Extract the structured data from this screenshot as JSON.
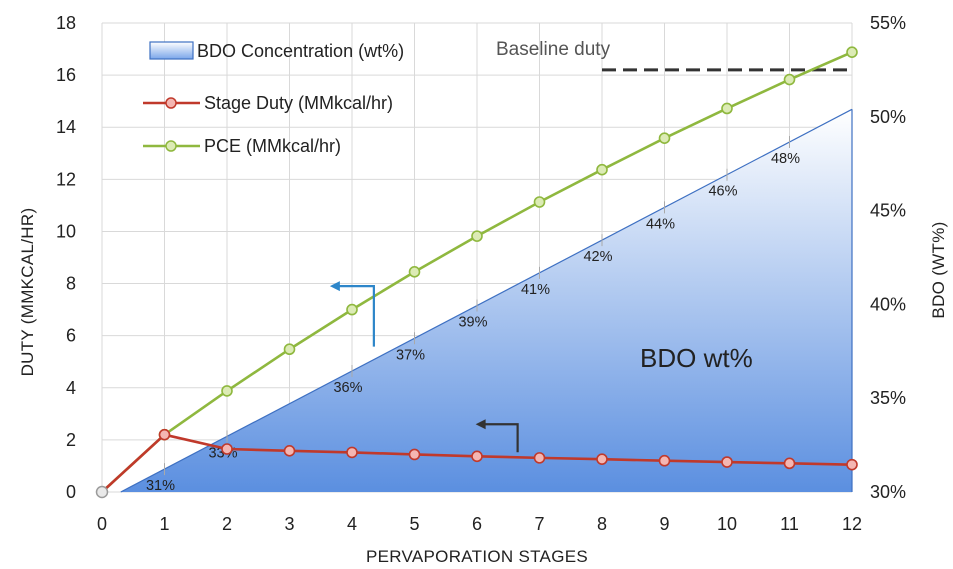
{
  "chart_data": {
    "type": "line",
    "x": [
      0,
      1,
      2,
      3,
      4,
      5,
      6,
      7,
      8,
      9,
      10,
      11,
      12
    ],
    "xlabel": "PERVAPORATION STAGES",
    "ylabel": "DUTY (MMKCAL/HR)",
    "y2label": "BDO (WT%)",
    "ylim": [
      0,
      18
    ],
    "yticks": [
      "0",
      "2",
      "4",
      "6",
      "8",
      "10",
      "12",
      "14",
      "16",
      "18"
    ],
    "y2lim": [
      30,
      55
    ],
    "y2ticks": [
      "30%",
      "35%",
      "40%",
      "45%",
      "50%",
      "55%"
    ],
    "xticks": [
      "0",
      "1",
      "2",
      "3",
      "4",
      "5",
      "6",
      "7",
      "8",
      "9",
      "10",
      "11",
      "12"
    ],
    "grid": true,
    "legend_position": "top-left",
    "series": [
      {
        "name": "BDO Concentration (wt%)",
        "type": "area",
        "axis": "right",
        "x": [
          0.3,
          12
        ],
        "values": [
          30.0,
          50.4
        ]
      },
      {
        "name": "Stage Duty (MMkcal/hr)",
        "type": "line",
        "axis": "left",
        "x": [
          0,
          1,
          2,
          3,
          4,
          5,
          6,
          7,
          8,
          9,
          10,
          11,
          12
        ],
        "values": [
          0,
          2.2,
          1.65,
          1.58,
          1.52,
          1.44,
          1.37,
          1.31,
          1.26,
          1.2,
          1.15,
          1.1,
          1.05
        ]
      },
      {
        "name": "PCE (MMkcal/hr)",
        "type": "line",
        "axis": "left",
        "x": [
          0,
          1,
          2,
          3,
          4,
          5,
          6,
          7,
          8,
          9,
          10,
          11,
          12
        ],
        "values": [
          0,
          2.2,
          3.88,
          5.48,
          7.0,
          8.45,
          9.82,
          11.13,
          12.37,
          13.58,
          14.72,
          15.83,
          16.88
        ]
      }
    ],
    "data_labels": [
      {
        "x": 1,
        "text": "31%"
      },
      {
        "x": 2,
        "text": "33%"
      },
      {
        "x": 4,
        "text": "36%"
      },
      {
        "x": 5,
        "text": "37%"
      },
      {
        "x": 6,
        "text": "39%"
      },
      {
        "x": 7,
        "text": "41%"
      },
      {
        "x": 8,
        "text": "42%"
      },
      {
        "x": 9,
        "text": "44%"
      },
      {
        "x": 10,
        "text": "46%"
      },
      {
        "x": 11,
        "text": "48%"
      }
    ],
    "baseline": {
      "label": "Baseline duty",
      "value": 16.2,
      "x_start": 8,
      "x_end": 12
    },
    "annotation": "BDO wt%",
    "colors": {
      "area_top": "#ffffff",
      "area_bottom": "#5b8fe0",
      "area_edge": "#3e70c2",
      "stage_line": "#c0392b",
      "stage_marker_fill": "#f4b6b2",
      "pce_line": "#8fb83f",
      "pce_marker_fill": "#dcebb5",
      "blue_arrow": "#2d86c9",
      "dark_arrow": "#333333",
      "baseline": "#333333"
    }
  }
}
